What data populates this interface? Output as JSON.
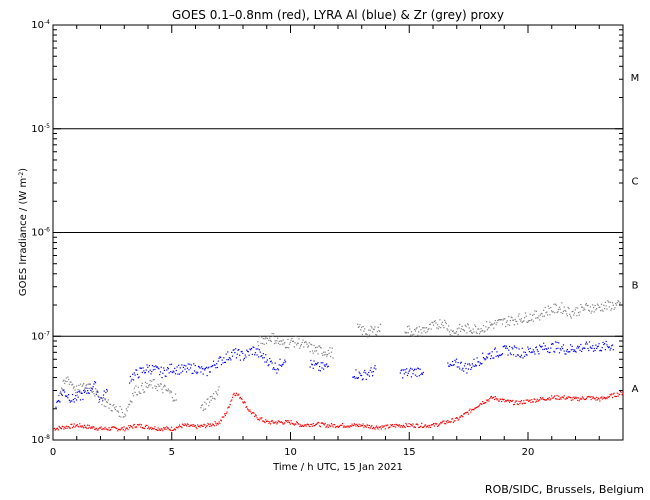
{
  "chart_data": {
    "type": "scatter",
    "title": "GOES 0.1–0.8nm (red), LYRA Al (blue) & Zr (grey) proxy",
    "xlabel": "Time / h UTC, 15 Jan 2021",
    "ylabel_main": "GOES Irradiance / (W m",
    "ylabel_sup": "-2",
    "ylabel_close": ")",
    "xlim": [
      0,
      24
    ],
    "ylim": [
      1e-08,
      0.0001
    ],
    "yscale": "log",
    "x_ticks": [
      0,
      5,
      10,
      15,
      20
    ],
    "x_tick_labels": [
      "0",
      "5",
      "10",
      "15",
      "20"
    ],
    "y_tick_values": [
      1e-08,
      1e-07,
      1e-06,
      1e-05,
      0.0001
    ],
    "y_tick_labels": [
      {
        "base": "10",
        "exp": "-8"
      },
      {
        "base": "10",
        "exp": "-7"
      },
      {
        "base": "10",
        "exp": "-6"
      },
      {
        "base": "10",
        "exp": "-5"
      },
      {
        "base": "10",
        "exp": "-4"
      }
    ],
    "flare_class_lines": [
      1e-07,
      1e-06,
      1e-05
    ],
    "flare_classes": [
      {
        "label": "M",
        "y": 3.16e-05
      },
      {
        "label": "C",
        "y": 3.16e-06
      },
      {
        "label": "B",
        "y": 3.16e-07
      },
      {
        "label": "A",
        "y": 3.16e-08
      }
    ],
    "series": [
      {
        "color": "#ff0000",
        "x": [
          0,
          0.5,
          1,
          1.5,
          2,
          2.5,
          3,
          3.5,
          4,
          4.5,
          5,
          5.5,
          6,
          6.5,
          7,
          7.3,
          7.6,
          7.9,
          8.2,
          8.5,
          9,
          9.5,
          10,
          10.5,
          11,
          11.5,
          12,
          12.5,
          13,
          13.5,
          14,
          14.5,
          15,
          15.5,
          16,
          16.5,
          17,
          17.5,
          18,
          18.5,
          19,
          19.5,
          20,
          20.5,
          21,
          21.5,
          22,
          22.5,
          23,
          23.5,
          24
        ],
        "y": [
          1.3e-08,
          1.35e-08,
          1.4e-08,
          1.35e-08,
          1.3e-08,
          1.3e-08,
          1.3e-08,
          1.4e-08,
          1.35e-08,
          1.3e-08,
          1.3e-08,
          1.4e-08,
          1.35e-08,
          1.4e-08,
          1.5e-08,
          1.9e-08,
          2.9e-08,
          2.6e-08,
          2e-08,
          1.7e-08,
          1.5e-08,
          1.5e-08,
          1.5e-08,
          1.4e-08,
          1.45e-08,
          1.4e-08,
          1.4e-08,
          1.4e-08,
          1.4e-08,
          1.35e-08,
          1.35e-08,
          1.4e-08,
          1.4e-08,
          1.4e-08,
          1.4e-08,
          1.5e-08,
          1.6e-08,
          1.9e-08,
          2.3e-08,
          2.6e-08,
          2.4e-08,
          2.3e-08,
          2.4e-08,
          2.5e-08,
          2.6e-08,
          2.6e-08,
          2.5e-08,
          2.6e-08,
          2.5e-08,
          2.7e-08,
          2.9e-08
        ]
      },
      {
        "color": "#0000ff",
        "x": [
          0.1,
          0.4,
          0.8,
          1.3,
          1.7,
          2.0,
          2.3,
          3.2,
          3.6,
          4.0,
          4.6,
          5.0,
          5.4,
          6.0,
          6.4,
          6.8,
          7.6,
          8.0,
          8.4,
          9.0,
          9.4,
          9.8,
          10.8,
          11.2,
          11.6,
          12.6,
          13.0,
          13.6,
          14.6,
          15.0,
          15.6,
          16.6,
          17.0,
          17.4,
          18.2,
          18.6,
          19.2,
          19.8,
          20.2,
          20.6,
          21.2,
          21.6,
          22.0,
          22.6,
          23.0,
          23.6
        ],
        "y": [
          2.2e-08,
          3e-08,
          2.5e-08,
          2.8e-08,
          3.5e-08,
          2.5e-08,
          3e-08,
          4e-08,
          4.5e-08,
          5e-08,
          4.5e-08,
          5e-08,
          4.8e-08,
          5e-08,
          4.5e-08,
          5.5e-08,
          7e-08,
          6.5e-08,
          7.5e-08,
          6e-08,
          5e-08,
          6.5e-08,
          5.5e-08,
          5e-08,
          5.2e-08,
          4.5e-08,
          4.2e-08,
          4.8e-08,
          4.5e-08,
          4.5e-08,
          4.8e-08,
          5e-08,
          5.5e-08,
          5e-08,
          6.5e-08,
          7e-08,
          7.5e-08,
          7e-08,
          7.5e-08,
          7.8e-08,
          8e-08,
          7.5e-08,
          7.8e-08,
          8e-08,
          8e-08,
          8.2e-08
        ]
      },
      {
        "color": "#808080",
        "x": [
          0.2,
          0.6,
          1.0,
          1.5,
          1.9,
          2.6,
          3.0,
          3.4,
          4.2,
          4.8,
          5.2,
          6.2,
          6.6,
          7.0,
          8.6,
          9.2,
          9.6,
          10.2,
          11.0,
          11.8,
          12.8,
          13.2,
          13.8,
          14.8,
          15.2,
          15.8,
          16.4,
          16.8,
          17.2,
          18.0,
          18.4,
          19.0,
          19.6,
          20.4,
          20.8,
          21.4,
          21.8,
          22.4,
          22.8,
          23.4,
          23.9
        ],
        "y": [
          2.8e-08,
          4e-08,
          3e-08,
          3.5e-08,
          2.6e-08,
          2e-08,
          1.8e-08,
          3e-08,
          3.5e-08,
          3e-08,
          2.5e-08,
          2e-08,
          2.5e-08,
          3e-08,
          9e-08,
          1e-07,
          8.5e-08,
          9e-08,
          7.5e-08,
          7e-08,
          1.2e-07,
          1.1e-07,
          1.2e-07,
          1.2e-07,
          1.1e-07,
          1.2e-07,
          1.4e-07,
          1.1e-07,
          1.2e-07,
          1.2e-07,
          1.3e-07,
          1.4e-07,
          1.5e-07,
          1.6e-07,
          1.8e-07,
          1.9e-07,
          1.7e-07,
          1.9e-07,
          1.9e-07,
          2e-07,
          2e-07
        ]
      }
    ]
  },
  "credit": "ROB/SIDC, Brussels, Belgium"
}
